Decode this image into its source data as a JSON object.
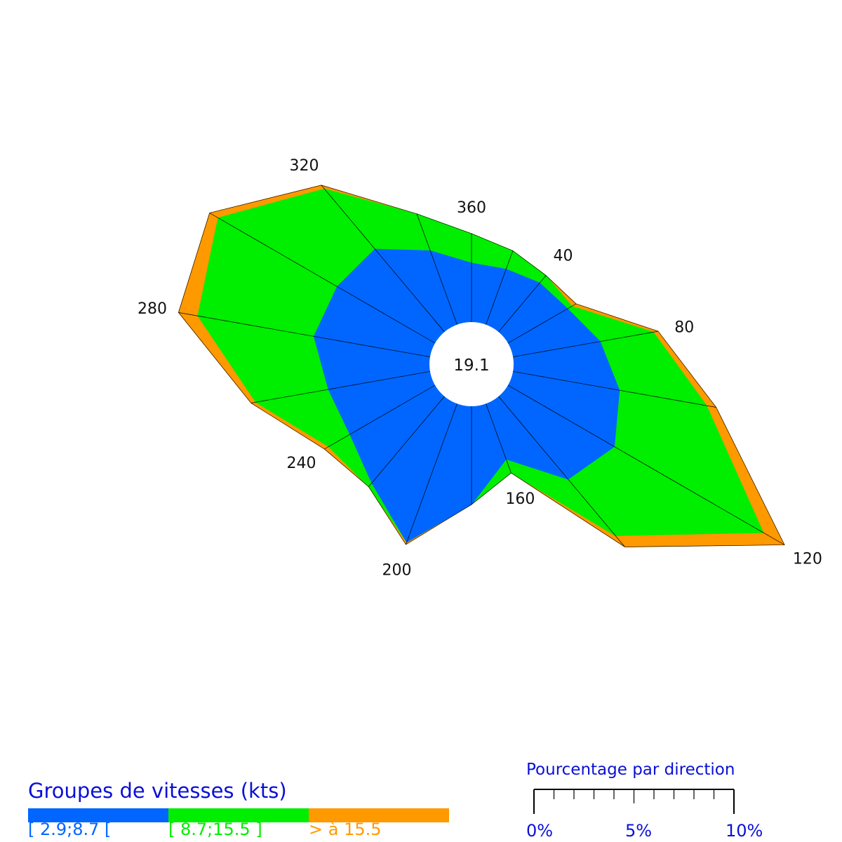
{
  "chart_data": {
    "type": "wind-rose",
    "title": "",
    "center_label": "19.1",
    "direction_labels": [
      "320",
      "360",
      "40",
      "80",
      "120",
      "160",
      "200",
      "240",
      "280"
    ],
    "label_directions": [
      320,
      360,
      40,
      80,
      120,
      160,
      200,
      240,
      280
    ],
    "directions": [
      0,
      20,
      40,
      60,
      80,
      100,
      120,
      140,
      160,
      180,
      200,
      220,
      240,
      260,
      280,
      300,
      320,
      340
    ],
    "series": [
      {
        "name": "[ 2.9;8.7 [",
        "color": "#0066ff",
        "cumulative_percent": [
          1.2,
          1.2,
          1.3,
          1.4,
          1.8,
          2.2,
          2.5,
          2.2,
          1.2,
          2.0,
          3.0,
          2.3,
          2.0,
          2.1,
          2.4,
          2.3,
          2.2,
          1.6
        ]
      },
      {
        "name": "[ 8.7;15.5 ]",
        "color": "#00ee00",
        "cumulative_percent": [
          1.8,
          1.6,
          1.5,
          1.5,
          2.9,
          4.0,
          6.0,
          3.7,
          1.5,
          2.0,
          3.0,
          2.4,
          2.5,
          3.6,
          4.8,
          5.1,
          3.8,
          2.4
        ]
      },
      {
        "name": "> à 15.5",
        "color": "#ff9900",
        "cumulative_percent": [
          1.8,
          1.6,
          1.5,
          1.6,
          3.0,
          4.2,
          6.5,
          4.0,
          1.5,
          2.0,
          3.05,
          2.4,
          2.6,
          3.7,
          5.2,
          5.3,
          3.9,
          2.4
        ]
      }
    ]
  },
  "legend": {
    "title": "Groupes de vitesses (kts)",
    "items": [
      {
        "label": "[ 2.9;8.7 [",
        "color": "#0066ff"
      },
      {
        "label": "[ 8.7;15.5 ]",
        "color": "#00ee00"
      },
      {
        "label": "> à 15.5",
        "color": "#ff9900"
      }
    ]
  },
  "scale": {
    "title": "Pourcentage par direction",
    "min_label": "0%",
    "mid_label": "5%",
    "max_label": "10%",
    "max_percent": 10,
    "minor_step_percent": 1
  }
}
